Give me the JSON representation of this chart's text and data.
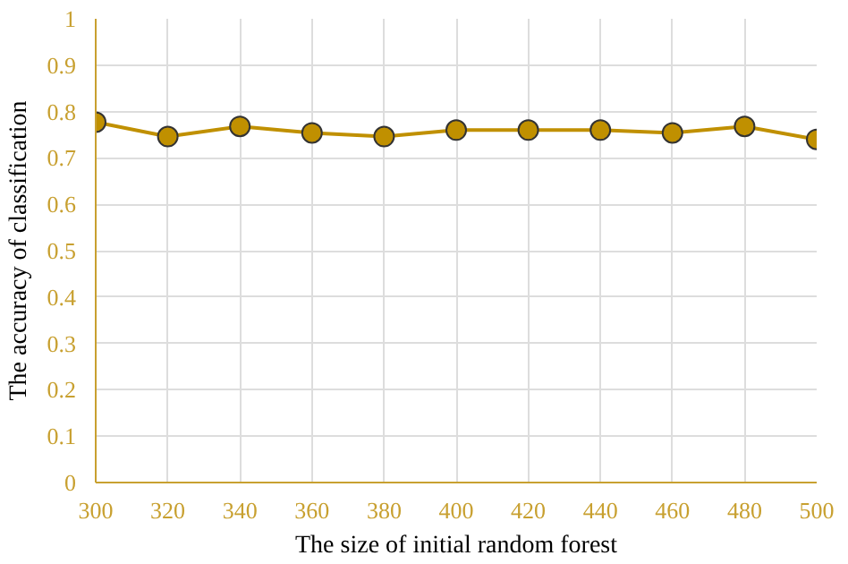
{
  "chart_data": {
    "type": "line",
    "xlabel": "The size of initial random forest",
    "ylabel": "The accuracy of classification",
    "x": [
      300,
      320,
      340,
      360,
      380,
      400,
      420,
      440,
      460,
      480,
      500
    ],
    "series": [
      {
        "color": "#c09000",
        "values": [
          0.777,
          0.746,
          0.768,
          0.754,
          0.746,
          0.76,
          0.76,
          0.76,
          0.754,
          0.768,
          0.74
        ]
      }
    ],
    "xlim": [
      300,
      500
    ],
    "xticks": [
      300,
      320,
      340,
      360,
      380,
      400,
      420,
      440,
      460,
      480,
      500
    ],
    "ylim": [
      0,
      1
    ],
    "yticks": [
      0,
      0.1,
      0.2,
      0.3,
      0.4,
      0.5,
      0.6,
      0.7,
      0.8,
      0.9,
      1
    ],
    "grid": true,
    "marker": "circle",
    "line_style": "solid"
  }
}
